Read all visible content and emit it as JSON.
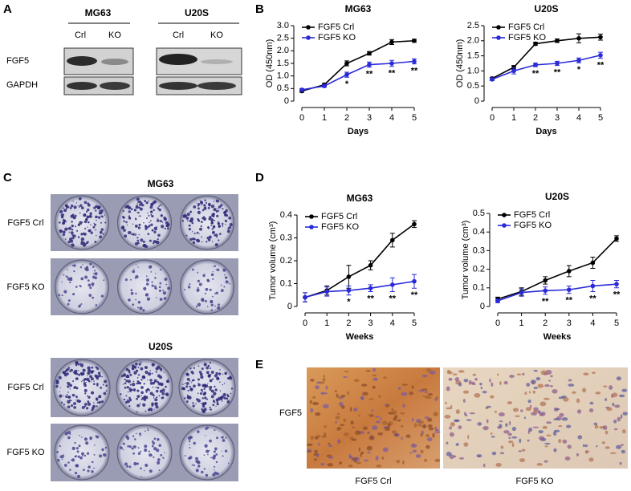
{
  "figure": {
    "panel_labels": [
      "A",
      "B",
      "C",
      "D",
      "E"
    ],
    "blot": {
      "groups": [
        "MG63",
        "U20S"
      ],
      "lanes": [
        "Crl",
        "KO",
        "Crl",
        "KO"
      ],
      "rows": [
        "FGF5",
        "GAPDH"
      ]
    },
    "colony": {
      "titles": [
        "MG63",
        "U20S"
      ],
      "rows": [
        "FGF5 Crl",
        "FGF5 KO",
        "FGF5 Crl",
        "FGF5 KO"
      ]
    },
    "ihc": {
      "row": "FGF5",
      "captions": [
        "FGF5 Crl",
        "FGF5 KO"
      ]
    }
  },
  "chart_data": [
    {
      "type": "line",
      "title": "MG63",
      "xlabel": "Days",
      "ylabel": "OD (450nm)",
      "x": [
        0,
        1,
        2,
        3,
        4,
        5
      ],
      "xlim": [
        0,
        5
      ],
      "xticks": [
        0,
        1,
        2,
        3,
        4,
        5
      ],
      "ylim": [
        0,
        3
      ],
      "yticks": [
        0,
        0.5,
        {
          "value": 1,
          "label": "1.0"
        },
        1.5,
        {
          "value": 2,
          "label": "2.0"
        },
        2.5,
        {
          "value": 3,
          "label": "3.0"
        }
      ],
      "legend": "upper left",
      "series": [
        {
          "name": "FGF5 Crl",
          "color": "#000000",
          "values": [
            0.4,
            0.65,
            1.5,
            1.9,
            2.35,
            2.4
          ],
          "errors": [
            0.05,
            0.06,
            0.1,
            0.07,
            0.1,
            0.06
          ]
        },
        {
          "name": "FGF5 KO",
          "color": "#2a2ad8",
          "values": [
            0.45,
            0.6,
            1.05,
            1.45,
            1.5,
            1.58
          ],
          "errors": [
            0.05,
            0.05,
            0.1,
            0.1,
            0.12,
            0.1
          ]
        }
      ],
      "significance": [
        null,
        null,
        "*",
        "**",
        "**",
        "**"
      ]
    },
    {
      "type": "line",
      "title": "U20S",
      "xlabel": "Days",
      "ylabel": "OD (450nm)",
      "x": [
        0,
        1,
        2,
        3,
        4,
        5
      ],
      "xlim": [
        0,
        5
      ],
      "xticks": [
        0,
        1,
        2,
        3,
        4,
        5
      ],
      "ylim": [
        0,
        2.5
      ],
      "yticks": [
        0,
        0.5,
        {
          "value": 1,
          "label": "1.0"
        },
        1.5,
        {
          "value": 2,
          "label": "2.0"
        },
        2.5
      ],
      "legend": "upper left",
      "series": [
        {
          "name": "FGF5 Crl",
          "color": "#000000",
          "values": [
            0.75,
            1.12,
            1.9,
            2.0,
            2.08,
            2.12
          ],
          "errors": [
            0.04,
            0.06,
            0.05,
            0.06,
            0.15,
            0.1
          ]
        },
        {
          "name": "FGF5 KO",
          "color": "#2a2ad8",
          "values": [
            0.72,
            1.0,
            1.2,
            1.25,
            1.35,
            1.52
          ],
          "errors": [
            0.04,
            0.1,
            0.06,
            0.07,
            0.08,
            0.1
          ]
        }
      ],
      "significance": [
        null,
        null,
        "**",
        "**",
        "*",
        "**"
      ]
    },
    {
      "type": "line",
      "title": "MG63",
      "xlabel": "Weeks",
      "ylabel": "Tumor volume (cm³)",
      "x": [
        0,
        1,
        2,
        3,
        4,
        5
      ],
      "xlim": [
        0,
        5
      ],
      "xticks": [
        0,
        1,
        2,
        3,
        4,
        5
      ],
      "ylim": [
        0,
        0.4
      ],
      "yticks": [
        0,
        0.1,
        0.2,
        0.3,
        0.4
      ],
      "legend": "upper left",
      "series": [
        {
          "name": "FGF5 Crl",
          "color": "#000000",
          "values": [
            0.04,
            0.07,
            0.13,
            0.18,
            0.29,
            0.36
          ],
          "errors": [
            0.02,
            0.02,
            0.05,
            0.02,
            0.03,
            0.015
          ]
        },
        {
          "name": "FGF5 KO",
          "color": "#2a2ad8",
          "values": [
            0.04,
            0.065,
            0.07,
            0.08,
            0.095,
            0.11
          ],
          "errors": [
            0.02,
            0.02,
            0.02,
            0.015,
            0.03,
            0.03
          ]
        }
      ],
      "significance": [
        null,
        null,
        "*",
        "**",
        "**",
        "**"
      ]
    },
    {
      "type": "line",
      "title": "U20S",
      "xlabel": "Weeks",
      "ylabel": "Tumor volume (cm³)",
      "x": [
        0,
        1,
        2,
        3,
        4,
        5
      ],
      "xlim": [
        0,
        5
      ],
      "xticks": [
        0,
        1,
        2,
        3,
        4,
        5
      ],
      "ylim": [
        0,
        0.5
      ],
      "yticks": [
        0,
        0.1,
        0.2,
        0.3,
        0.4,
        0.5
      ],
      "legend": "upper left",
      "series": [
        {
          "name": "FGF5 Crl",
          "color": "#000000",
          "values": [
            0.04,
            0.08,
            0.14,
            0.19,
            0.235,
            0.365
          ],
          "errors": [
            0.01,
            0.02,
            0.02,
            0.03,
            0.03,
            0.015
          ]
        },
        {
          "name": "FGF5 KO",
          "color": "#2a2ad8",
          "values": [
            0.03,
            0.075,
            0.085,
            0.09,
            0.11,
            0.12
          ],
          "errors": [
            0.01,
            0.02,
            0.02,
            0.02,
            0.03,
            0.02
          ]
        }
      ],
      "significance": [
        null,
        null,
        "**",
        "**",
        "**",
        "**"
      ]
    }
  ]
}
